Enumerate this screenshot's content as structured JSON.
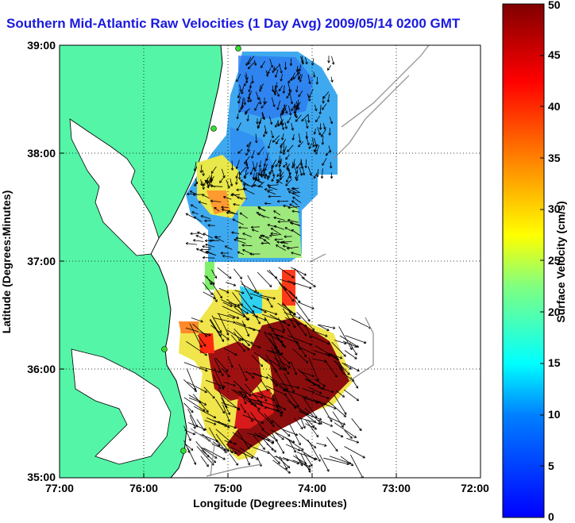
{
  "title": "Southern Mid-Atlantic Raw Velocities (1 Day Avg) 2009/05/14 0200 GMT",
  "map": {
    "xlabel": "Longitude (Degrees:Minutes)",
    "ylabel": "Latitude (Degrees:Minutes)",
    "xticks": [
      "77:00",
      "76:00",
      "75:00",
      "74:00",
      "73:00",
      "72:00"
    ],
    "yticks": [
      "39:00",
      "38:00",
      "37:00",
      "36:00",
      "35:00"
    ],
    "land_color": "#55f5a8",
    "grid": "dotted"
  },
  "colorbar": {
    "label": "Surface Velocity (cm/s)",
    "ticks": [
      "0",
      "5",
      "10",
      "15",
      "20",
      "25",
      "30",
      "35",
      "40",
      "45",
      "50"
    ],
    "min": 0,
    "max": 50,
    "colormap": "jet"
  }
}
